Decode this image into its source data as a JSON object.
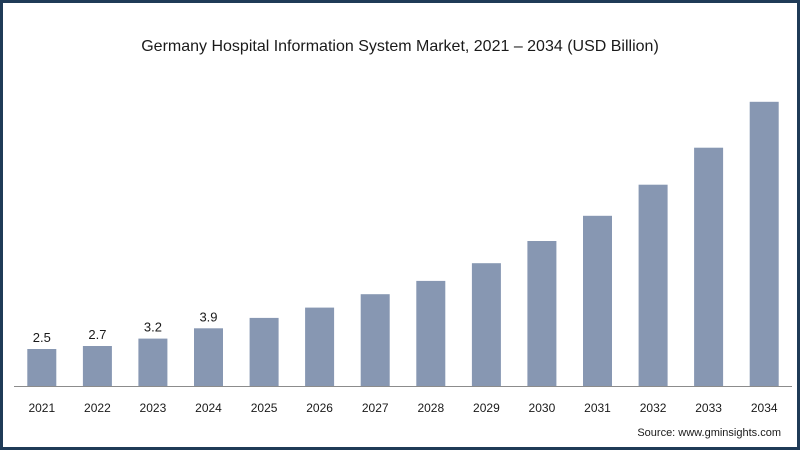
{
  "source": "Source: www.gminsights.com",
  "colors": {
    "bar": "#8797b2",
    "axis": "#8c8c8c",
    "border": "#1f3b57",
    "text": "#1a1a1a"
  },
  "chart_data": {
    "type": "bar",
    "title": "Germany Hospital Information System Market, 2021 – 2034 (USD Billion)",
    "xlabel": "",
    "ylabel": "",
    "categories": [
      "2021",
      "2022",
      "2023",
      "2024",
      "2025",
      "2026",
      "2027",
      "2028",
      "2029",
      "2030",
      "2031",
      "2032",
      "2033",
      "2034"
    ],
    "values": [
      2.5,
      2.7,
      3.2,
      3.9,
      4.6,
      5.3,
      6.2,
      7.1,
      8.3,
      9.8,
      11.5,
      13.6,
      16.1,
      19.2
    ],
    "data_labels": [
      "2.5",
      "2.7",
      "3.2",
      "3.9",
      "",
      "",
      "",
      "",
      "",
      "",
      "",
      "",
      "",
      ""
    ],
    "ylim": [
      0,
      20
    ],
    "grid": false,
    "legend": "none"
  }
}
